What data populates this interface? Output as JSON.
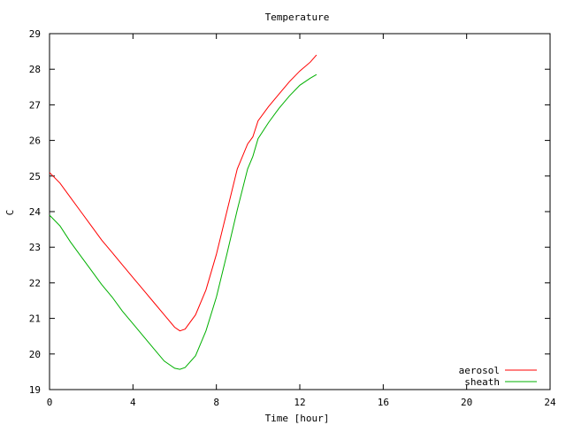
{
  "chart_data": {
    "type": "line",
    "title": "Temperature",
    "xlabel": "Time [hour]",
    "ylabel": "C",
    "xlim": [
      0,
      24
    ],
    "ylim": [
      19,
      29
    ],
    "xticks": [
      0,
      4,
      8,
      12,
      16,
      20,
      24
    ],
    "yticks": [
      19,
      20,
      21,
      22,
      23,
      24,
      25,
      26,
      27,
      28,
      29
    ],
    "grid": false,
    "legend_position": "bottom-right",
    "series": [
      {
        "name": "aerosol",
        "color": "#ff0000",
        "x": [
          0,
          0.5,
          1,
          1.5,
          2,
          2.5,
          3,
          3.5,
          4,
          4.5,
          5,
          5.5,
          6,
          6.25,
          6.5,
          7,
          7.5,
          8,
          8.5,
          9,
          9.5,
          9.75,
          10,
          10.5,
          11,
          11.5,
          12,
          12.5,
          12.8
        ],
        "values": [
          25.1,
          24.8,
          24.4,
          24.0,
          23.6,
          23.2,
          22.85,
          22.5,
          22.15,
          21.8,
          21.45,
          21.1,
          20.75,
          20.65,
          20.7,
          21.1,
          21.8,
          22.8,
          24.0,
          25.2,
          25.9,
          26.1,
          26.55,
          26.95,
          27.3,
          27.65,
          27.95,
          28.2,
          28.4
        ]
      },
      {
        "name": "sheath",
        "color": "#00b000",
        "x": [
          0,
          0.5,
          1,
          1.5,
          2,
          2.5,
          3,
          3.5,
          4,
          4.5,
          5,
          5.5,
          6,
          6.25,
          6.5,
          7,
          7.5,
          8,
          8.5,
          9,
          9.5,
          9.75,
          10,
          10.5,
          11,
          11.5,
          12,
          12.5,
          12.8
        ],
        "values": [
          23.9,
          23.6,
          23.15,
          22.75,
          22.35,
          21.95,
          21.6,
          21.2,
          20.85,
          20.5,
          20.15,
          19.8,
          19.6,
          19.57,
          19.62,
          19.95,
          20.65,
          21.6,
          22.8,
          24.05,
          25.2,
          25.55,
          26.05,
          26.5,
          26.9,
          27.25,
          27.55,
          27.75,
          27.85
        ]
      }
    ]
  }
}
